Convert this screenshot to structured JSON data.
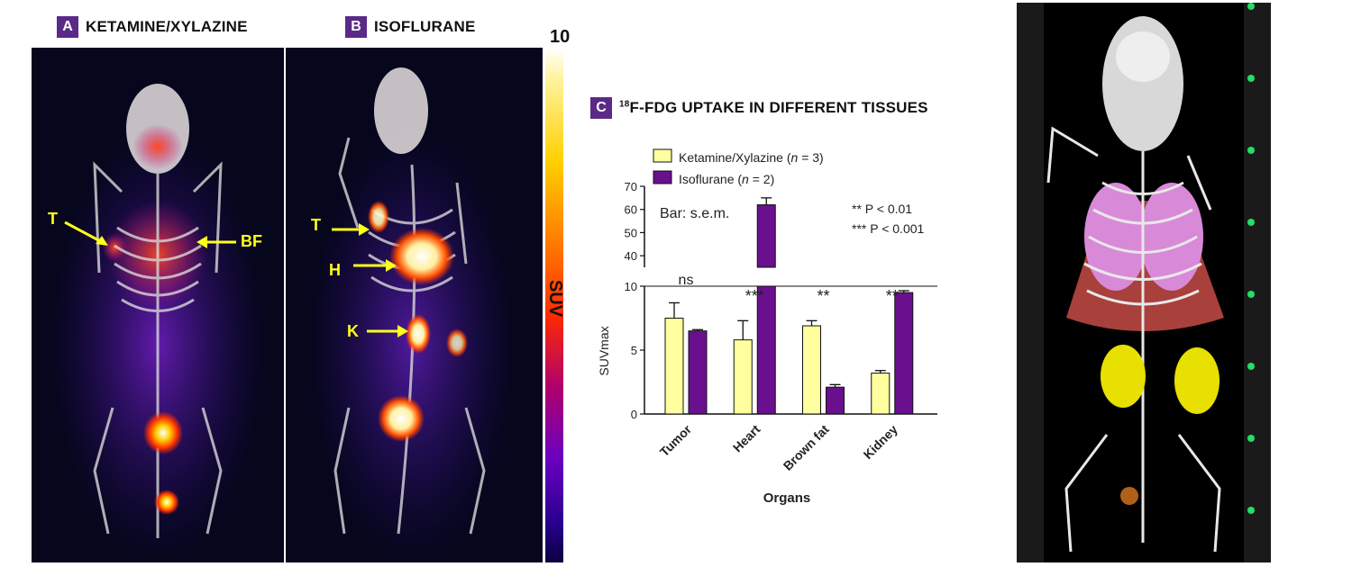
{
  "panels": {
    "a": {
      "letter": "A",
      "title": "KETAMINE/XYLAZINE"
    },
    "b": {
      "letter": "B",
      "title": "ISOFLURANE"
    },
    "c": {
      "letter": "C",
      "title_sup": "18",
      "title_rest": "F-FDG UPTAKE IN DIFFERENT TISSUES"
    }
  },
  "colorbar": {
    "max_label": "10",
    "label": "SUV"
  },
  "scan_labels": {
    "a": {
      "t": "T",
      "bf": "BF"
    },
    "b": {
      "t": "T",
      "h": "H",
      "k": "K"
    }
  },
  "colors": {
    "ketamine": "#ffffa0",
    "isoflurane": "#6a0f8e",
    "badge": "#5b2a86",
    "arrow": "#ffff1a"
  },
  "chart_data": {
    "type": "bar",
    "categories": [
      "Tumor",
      "Heart",
      "Brown fat",
      "Kidney"
    ],
    "series": [
      {
        "name": "Ketamine/Xylazine (n = 3)",
        "legend_main": "Ketamine/Xylazine (",
        "legend_n": "n",
        "legend_tail": " = 3)",
        "values": [
          7.5,
          5.8,
          6.9,
          3.2
        ],
        "errors": [
          1.2,
          1.5,
          0.4,
          0.2
        ]
      },
      {
        "name": "Isoflurane (n = 2)",
        "legend_main": "Isoflurane (",
        "legend_n": "n",
        "legend_tail": " = 2)",
        "values": [
          6.5,
          62,
          2.1,
          9.5
        ],
        "errors": [
          0.1,
          3,
          0.2,
          0.15
        ]
      }
    ],
    "significance": [
      "ns",
      "***",
      "**",
      "**"
    ],
    "xlabel": "Organs",
    "ylabel": "SUVmax",
    "y_ticks_lower": [
      0,
      5,
      10
    ],
    "y_ticks_upper": [
      40,
      50,
      60,
      70
    ],
    "y_break": [
      10,
      35
    ],
    "ylim": [
      0,
      70
    ],
    "annotation_bar": "Bar: s.e.m.",
    "p_note_1": "** P < 0.01",
    "p_note_2": "*** P < 0.001"
  }
}
